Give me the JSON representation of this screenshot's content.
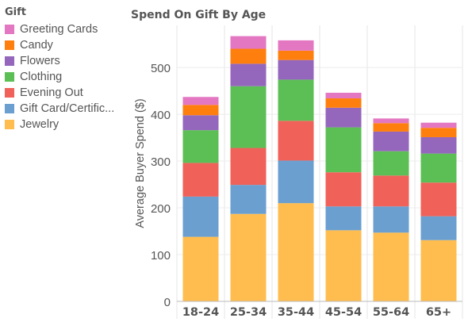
{
  "legend": {
    "title": "Gift",
    "items": [
      {
        "label": "Greeting Cards",
        "color": "#e377c2"
      },
      {
        "label": "Candy",
        "color": "#ff7f0e"
      },
      {
        "label": "Flowers",
        "color": "#9467bd"
      },
      {
        "label": "Clothing",
        "color": "#5cbf55"
      },
      {
        "label": "Evening Out",
        "color": "#ef6159"
      },
      {
        "label": "Gift Card/Certific...",
        "color": "#6a9fd0"
      },
      {
        "label": "Jewelry",
        "color": "#ffbd4f"
      }
    ]
  },
  "chart_data": {
    "type": "bar",
    "stacked": true,
    "title": "Spend On Gift By Age",
    "xlabel": "",
    "ylabel": "Average Buyer Spend ($)",
    "ylim": [
      0,
      590
    ],
    "yticks": [
      0,
      100,
      200,
      300,
      400,
      500
    ],
    "grid": true,
    "legend_position": "left",
    "categories": [
      "18-24",
      "25-34",
      "35-44",
      "45-54",
      "55-64",
      "65+"
    ],
    "series": [
      {
        "name": "Jewelry",
        "color": "#ffbd4f",
        "values": [
          138,
          187,
          210,
          152,
          147,
          131
        ]
      },
      {
        "name": "Gift Card/Certific...",
        "color": "#6a9fd0",
        "values": [
          86,
          62,
          91,
          51,
          56,
          51
        ]
      },
      {
        "name": "Evening Out",
        "color": "#ef6159",
        "values": [
          72,
          79,
          85,
          73,
          66,
          72
        ]
      },
      {
        "name": "Clothing",
        "color": "#5cbf55",
        "values": [
          70,
          132,
          88,
          96,
          52,
          62
        ]
      },
      {
        "name": "Flowers",
        "color": "#9467bd",
        "values": [
          32,
          48,
          42,
          42,
          42,
          35
        ]
      },
      {
        "name": "Candy",
        "color": "#ff7f0e",
        "values": [
          22,
          32,
          20,
          20,
          18,
          20
        ]
      },
      {
        "name": "Greeting Cards",
        "color": "#e377c2",
        "values": [
          17,
          27,
          22,
          12,
          10,
          11
        ]
      }
    ]
  }
}
